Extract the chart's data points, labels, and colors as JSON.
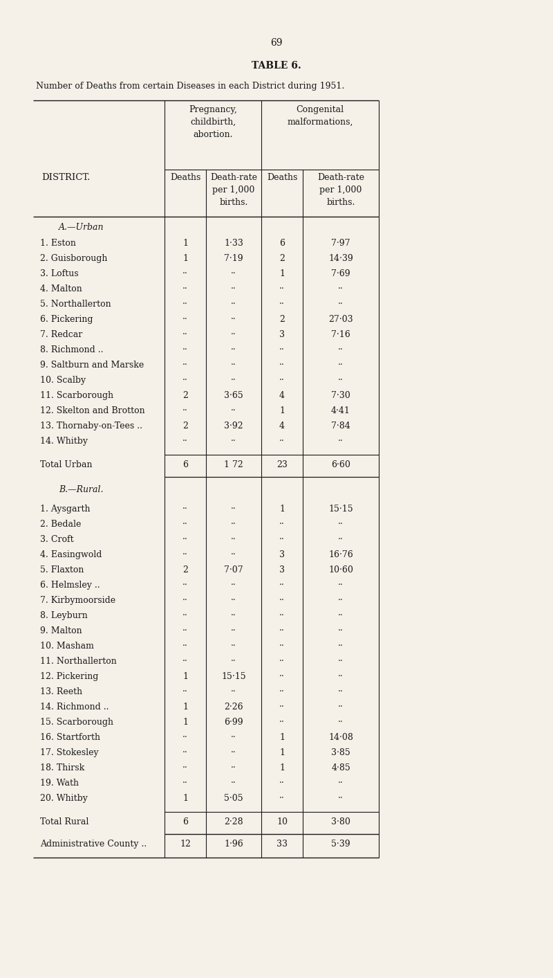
{
  "page_number": "69",
  "table_title": "TABLE 6.",
  "subtitle": "Number of Deaths from certain Diseases in each District during 1951.",
  "bg_color": "#f5f0e8",
  "text_color": "#1a1a1a",
  "section_urban": "A.—Urban",
  "section_rural": "B.—Rural.",
  "urban_rows": [
    [
      "1. Eston",
      "1",
      "1·33",
      "6",
      "7·97"
    ],
    [
      "2. Guisborough",
      "1",
      "7·19",
      "2",
      "14·39"
    ],
    [
      "3. Loftus",
      "",
      "",
      "1",
      "7·69"
    ],
    [
      "4. Malton",
      "",
      "",
      "",
      ""
    ],
    [
      "5. Northallerton",
      "",
      "",
      "",
      ""
    ],
    [
      "6. Pickering",
      "",
      "",
      "2",
      "27·03"
    ],
    [
      "7. Redcar",
      "",
      "",
      "3",
      "7·16"
    ],
    [
      "8. Richmond ..",
      "",
      "",
      "",
      ""
    ],
    [
      "9. Saltburn and Marske",
      "",
      "",
      "",
      ""
    ],
    [
      "10. Scalby",
      "",
      "",
      "",
      ""
    ],
    [
      "11. Scarborough",
      "2",
      "3·65",
      "4",
      "7·30"
    ],
    [
      "12. Skelton and Brotton",
      "",
      "",
      "1",
      "4·41"
    ],
    [
      "13. Thornaby-on-Tees ..",
      "2",
      "3·92",
      "4",
      "7·84"
    ],
    [
      "14. Whitby",
      "",
      "",
      "",
      ""
    ]
  ],
  "urban_total": [
    "Total Urban",
    "6",
    "1 72",
    "23",
    "6·60"
  ],
  "rural_rows": [
    [
      "1. Aysgarth",
      "",
      "",
      "1",
      "15·15"
    ],
    [
      "2. Bedale",
      "",
      "",
      "",
      ""
    ],
    [
      "3. Croft",
      "",
      "",
      "",
      ""
    ],
    [
      "4. Easingwold",
      "",
      "",
      "3",
      "16·76"
    ],
    [
      "5. Flaxton",
      "2",
      "7·07",
      "3",
      "10·60"
    ],
    [
      "6. Helmsley ..",
      "",
      "",
      "",
      ""
    ],
    [
      "7. Kirbymoorside",
      "",
      "",
      "",
      ""
    ],
    [
      "8. Leyburn",
      "",
      "",
      "",
      ""
    ],
    [
      "9. Malton",
      "",
      "",
      "",
      ""
    ],
    [
      "10. Masham",
      "",
      "",
      "",
      ""
    ],
    [
      "11. Northallerton",
      "",
      "",
      "",
      ""
    ],
    [
      "12. Pickering",
      "1",
      "15·15",
      "",
      ""
    ],
    [
      "13. Reeth",
      "",
      "",
      "",
      ""
    ],
    [
      "14. Richmond ..",
      "1",
      "2·26",
      "",
      ""
    ],
    [
      "15. Scarborough",
      "1",
      "6·99",
      "",
      ""
    ],
    [
      "16. Startforth",
      "",
      "",
      "1",
      "14·08"
    ],
    [
      "17. Stokesley",
      "",
      "",
      "1",
      "3·85"
    ],
    [
      "18. Thirsk",
      "",
      "",
      "1",
      "4·85"
    ],
    [
      "19. Wath",
      "",
      "",
      "",
      ""
    ],
    [
      "20. Whitby",
      "1",
      "5·05",
      "",
      ""
    ]
  ],
  "rural_total": [
    "Total Rural",
    "6",
    "2·28",
    "10",
    "3·80"
  ],
  "admin_total": [
    "Administrative County ..",
    "12",
    "1·96",
    "33",
    "5·39"
  ],
  "dots": "··"
}
